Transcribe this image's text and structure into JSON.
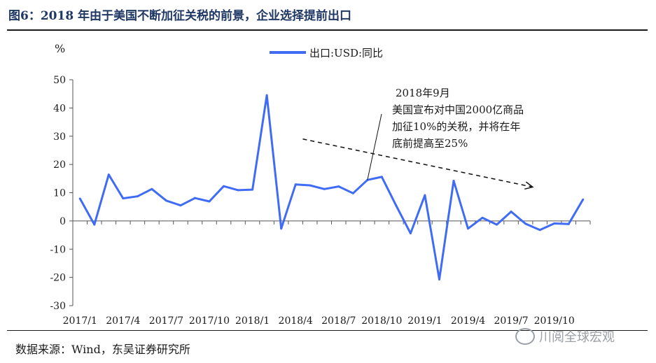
{
  "title": "图6：2018 年由于美国不断加征关税的前景，企业选择提前出口",
  "source": "数据来源：Wind，东吴证券研究所",
  "watermark": "川阅全球宏观",
  "colors": {
    "line": "#3f6bf5",
    "title": "#1f3864"
  },
  "chart_data": {
    "type": "line",
    "unit_label": "%",
    "legend_position": "top-center",
    "grid": false,
    "ylim": [
      -30,
      50
    ],
    "yticks": [
      50,
      40,
      30,
      20,
      10,
      0,
      -10,
      -20,
      -30
    ],
    "xtick_labels": [
      "2017/1",
      "2017/4",
      "2017/7",
      "2017/10",
      "2018/1",
      "2018/4",
      "2018/7",
      "2018/10",
      "2019/1",
      "2019/4",
      "2019/7",
      "2019/10"
    ],
    "categories": [
      "2017/1",
      "2017/2",
      "2017/3",
      "2017/4",
      "2017/5",
      "2017/6",
      "2017/7",
      "2017/8",
      "2017/9",
      "2017/10",
      "2017/11",
      "2017/12",
      "2018/1",
      "2018/2",
      "2018/3",
      "2018/4",
      "2018/5",
      "2018/6",
      "2018/7",
      "2018/8",
      "2018/9",
      "2018/10",
      "2018/11",
      "2018/12",
      "2019/1",
      "2019/2",
      "2019/3",
      "2019/4",
      "2019/5",
      "2019/6",
      "2019/7",
      "2019/8",
      "2019/9",
      "2019/10",
      "2019/11",
      "2019/12"
    ],
    "series": [
      {
        "name": "出口:USD:同比",
        "values": [
          7.9,
          -1.3,
          16.4,
          8.0,
          8.7,
          11.3,
          7.2,
          5.5,
          8.1,
          6.9,
          12.3,
          10.9,
          11.1,
          44.5,
          -2.7,
          12.9,
          12.6,
          11.3,
          12.2,
          9.8,
          14.5,
          15.6,
          5.4,
          -4.4,
          9.1,
          -20.7,
          14.2,
          -2.7,
          1.1,
          -1.3,
          3.3,
          -1.0,
          -3.2,
          -0.9,
          -1.1,
          7.6
        ]
      }
    ],
    "annotation": {
      "lines": [
        "2018年9月",
        "美国宣布对中国2000亿商品",
        "加征10%的关税，并将在年",
        "底前提高至25%"
      ],
      "point_index": 20
    },
    "trend_arrow": {
      "from": [
        15.5,
        29
      ],
      "to": [
        31.5,
        12
      ]
    }
  }
}
